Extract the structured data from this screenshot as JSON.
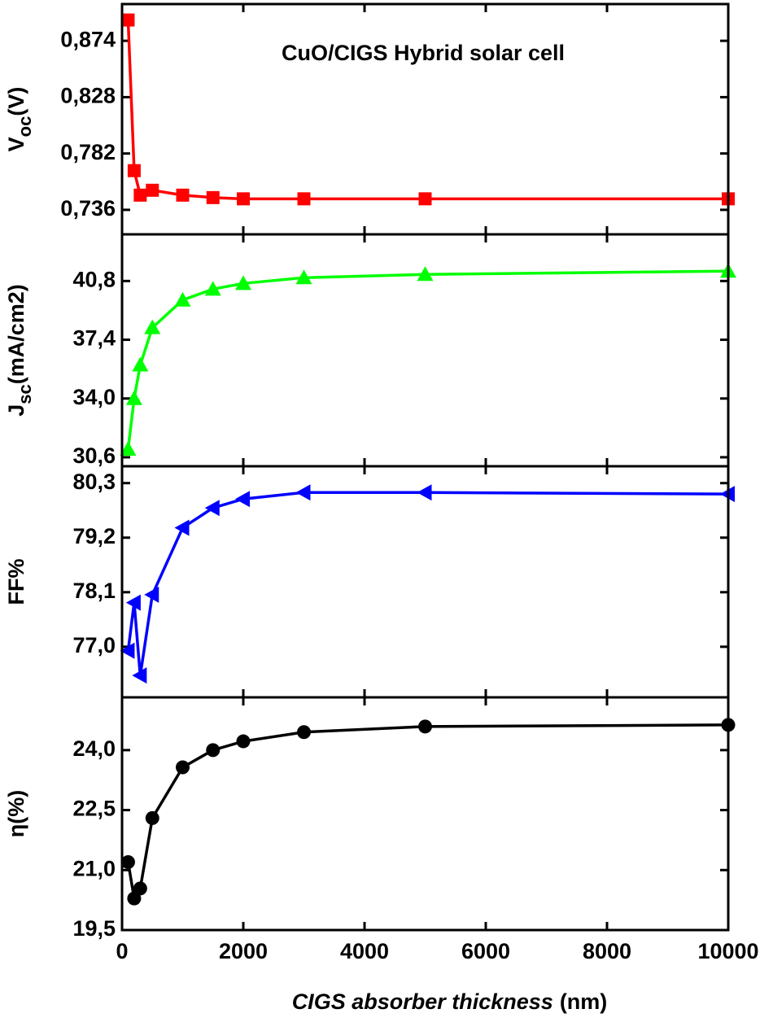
{
  "chart_data": [
    {
      "type": "line",
      "title": "CuO/CIGS Hybrid solar cell",
      "ylabel": [
        "V",
        "oc",
        "(V)"
      ],
      "marker": "square",
      "color": "#ff0000",
      "x": [
        100,
        200,
        300,
        500,
        1000,
        1500,
        2000,
        3000,
        5000,
        10000
      ],
      "values": [
        0.891,
        0.768,
        0.748,
        0.752,
        0.748,
        0.746,
        0.745,
        0.745,
        0.745,
        0.745
      ],
      "xlim": [
        0,
        10000
      ],
      "xticks": [
        0,
        2000,
        4000,
        6000,
        8000,
        10000
      ],
      "ylim": [
        0.716,
        0.904
      ],
      "yticks": [
        {
          "value": 0.736,
          "label": "0,736"
        },
        {
          "value": 0.782,
          "label": "0,782"
        },
        {
          "value": 0.828,
          "label": "0,828"
        },
        {
          "value": 0.874,
          "label": "0,874"
        }
      ]
    },
    {
      "type": "line",
      "ylabel": [
        "J",
        "sc",
        "(mA/cm2)"
      ],
      "marker": "triangle-up",
      "color": "#00ff00",
      "x": [
        100,
        200,
        300,
        500,
        1000,
        1500,
        2000,
        3000,
        5000,
        10000
      ],
      "values": [
        31.07,
        34.0,
        35.94,
        38.1,
        39.7,
        40.33,
        40.66,
        40.99,
        41.18,
        41.37
      ],
      "xlim": [
        0,
        10000
      ],
      "xticks": [
        0,
        2000,
        4000,
        6000,
        8000,
        10000
      ],
      "ylim": [
        30.08,
        43.5
      ],
      "yticks": [
        {
          "value": 30.6,
          "label": "30,6"
        },
        {
          "value": 34.0,
          "label": "34,0"
        },
        {
          "value": 37.4,
          "label": "37,4"
        },
        {
          "value": 40.8,
          "label": "40,8"
        }
      ]
    },
    {
      "type": "line",
      "ylabel": [
        "FF%"
      ],
      "marker": "triangle-left",
      "color": "#0000ff",
      "x": [
        100,
        200,
        300,
        500,
        1000,
        1500,
        2000,
        3000,
        5000,
        10000
      ],
      "values": [
        76.92,
        77.89,
        76.42,
        78.05,
        79.4,
        79.8,
        79.98,
        80.11,
        80.11,
        80.08
      ],
      "xlim": [
        0,
        10000
      ],
      "xticks": [
        0,
        2000,
        4000,
        6000,
        8000,
        10000
      ],
      "ylim": [
        75.98,
        80.64
      ],
      "yticks": [
        {
          "value": 77.0,
          "label": "77,0"
        },
        {
          "value": 78.1,
          "label": "78,1"
        },
        {
          "value": 79.2,
          "label": "79,2"
        },
        {
          "value": 80.3,
          "label": "80,3"
        }
      ]
    },
    {
      "type": "line",
      "ylabel": [
        "η(%)"
      ],
      "xlabel": [
        "CIGS absorber thickness",
        "(nm)"
      ],
      "marker": "circle",
      "color": "#000000",
      "x": [
        100,
        200,
        300,
        500,
        1000,
        1500,
        2000,
        3000,
        5000,
        10000
      ],
      "values": [
        21.2,
        20.29,
        20.54,
        22.3,
        23.57,
        24.0,
        24.22,
        24.45,
        24.59,
        24.63
      ],
      "xlim": [
        0,
        10000
      ],
      "xticks": [
        0,
        2000,
        4000,
        6000,
        8000,
        10000
      ],
      "ylim": [
        19.5,
        25.32
      ],
      "yticks": [
        {
          "value": 19.5,
          "label": "19,5"
        },
        {
          "value": 21.0,
          "label": "21,0"
        },
        {
          "value": 22.5,
          "label": "22,5"
        },
        {
          "value": 24.0,
          "label": "24,0"
        }
      ]
    }
  ]
}
